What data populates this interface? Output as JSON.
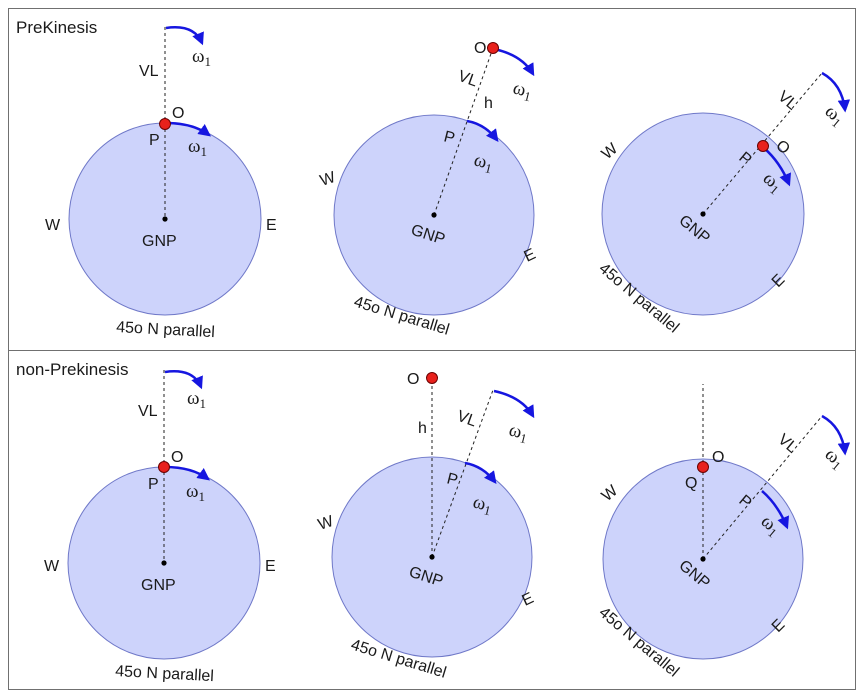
{
  "panels": [
    {
      "title": "PreKinesis",
      "diagrams": [
        {
          "observer": "O",
          "point": "P",
          "center": "GNP",
          "west": "W",
          "east": "E",
          "vertical": "VL",
          "omega_top": "ω",
          "omega_top_sub": "1",
          "omega_arc": "ω",
          "omega_arc_sub": "1",
          "parallel": "45o N parallel"
        },
        {
          "observer": "O",
          "point": "P",
          "center": "GNP",
          "west": "W",
          "east": "E",
          "vertical": "VL",
          "height": "h",
          "omega_top": "ω",
          "omega_top_sub": "1",
          "omega_arc": "ω",
          "omega_arc_sub": "1",
          "parallel": "45o N parallel"
        },
        {
          "observer": "O",
          "point": "P",
          "center": "GNP",
          "west": "W",
          "east": "E",
          "vertical": "VL",
          "omega_top": "ω",
          "omega_top_sub": "1",
          "omega_arc": "ω",
          "omega_arc_sub": "1",
          "parallel": "45o N parallel"
        }
      ]
    },
    {
      "title": "non-Prekinesis",
      "diagrams": [
        {
          "observer": "O",
          "point": "P",
          "center": "GNP",
          "west": "W",
          "east": "E",
          "vertical": "VL",
          "omega_top": "ω",
          "omega_top_sub": "1",
          "omega_arc": "ω",
          "omega_arc_sub": "1",
          "parallel": "45o N parallel"
        },
        {
          "observer": "O",
          "point": "P",
          "center": "GNP",
          "west": "W",
          "east": "E",
          "vertical": "VL",
          "height": "h",
          "omega_top": "ω",
          "omega_top_sub": "1",
          "omega_arc": "ω",
          "omega_arc_sub": "1",
          "parallel": "45o N parallel"
        },
        {
          "observer": "O",
          "point": "P",
          "extra_point": "Q",
          "center": "GNP",
          "west": "W",
          "east": "E",
          "vertical": "VL",
          "omega_top": "ω",
          "omega_top_sub": "1",
          "omega_arc": "ω",
          "omega_arc_sub": "1",
          "parallel": "45o N parallel"
        }
      ]
    }
  ],
  "colors": {
    "circle_fill": "#cdd3fb",
    "circle_stroke": "#6f78c8",
    "arrow": "#1616e0",
    "observer_dot": "#e8211c",
    "border": "#707070"
  }
}
